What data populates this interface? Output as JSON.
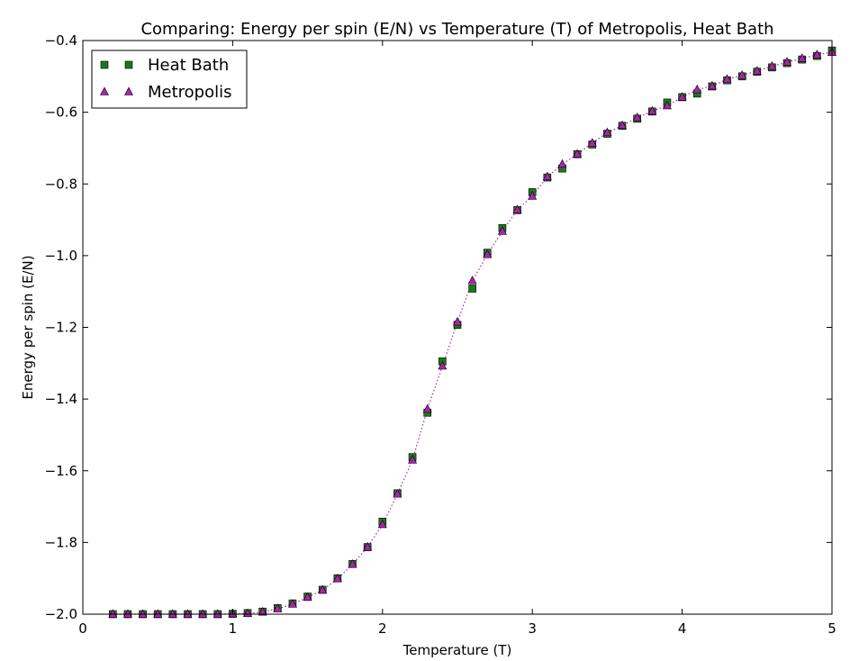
{
  "chart_data": {
    "type": "scatter",
    "title": "Comparing: Energy per spin (E/N) vs Temperature (T) of Metropolis, Heat Bath",
    "xlabel": "Temperature (T)",
    "ylabel": "Energy per spin (E/N)",
    "xlim": [
      0,
      5
    ],
    "ylim": [
      -2.0,
      -0.4
    ],
    "xticks": [
      0,
      1,
      2,
      3,
      4,
      5
    ],
    "xtick_labels": [
      "0",
      "1",
      "2",
      "3",
      "4",
      "5"
    ],
    "yticks": [
      -2.0,
      -1.8,
      -1.6,
      -1.4,
      -1.2,
      -1.0,
      -0.8,
      -0.6,
      -0.4
    ],
    "ytick_labels": [
      "−2.0",
      "−1.8",
      "−1.6",
      "−1.4",
      "−1.2",
      "−1.0",
      "−0.8",
      "−0.6",
      "−0.4"
    ],
    "grid": false,
    "legend_position": "top-left",
    "x": [
      0.2,
      0.3,
      0.4,
      0.5,
      0.6,
      0.7,
      0.8,
      0.9,
      1.0,
      1.1,
      1.2,
      1.3,
      1.4,
      1.5,
      1.6,
      1.7,
      1.8,
      1.9,
      2.0,
      2.1,
      2.2,
      2.3,
      2.4,
      2.5,
      2.6,
      2.7,
      2.8,
      2.9,
      3.0,
      3.1,
      3.2,
      3.3,
      3.4,
      3.5,
      3.6,
      3.7,
      3.8,
      3.9,
      4.0,
      4.1,
      4.2,
      4.3,
      4.4,
      4.5,
      4.6,
      4.7,
      4.8,
      4.9,
      5.0
    ],
    "series": [
      {
        "name": "Heat Bath",
        "marker": "square",
        "color": "#1a7a1a",
        "values": [
          -2.0,
          -2.0,
          -2.0,
          -2.0,
          -2.0,
          -2.0,
          -2.0,
          -2.0,
          -1.999,
          -1.997,
          -1.993,
          -1.983,
          -1.97,
          -1.951,
          -1.932,
          -1.9,
          -1.86,
          -1.813,
          -1.742,
          -1.663,
          -1.562,
          -1.438,
          -1.295,
          -1.193,
          -1.092,
          -0.992,
          -0.923,
          -0.873,
          -0.823,
          -0.782,
          -0.757,
          -0.717,
          -0.69,
          -0.66,
          -0.638,
          -0.618,
          -0.598,
          -0.573,
          -0.558,
          -0.548,
          -0.528,
          -0.511,
          -0.5,
          -0.487,
          -0.475,
          -0.463,
          -0.453,
          -0.443,
          -0.428
        ],
        "line_style": "none"
      },
      {
        "name": "Metropolis",
        "marker": "triangle",
        "color": "#b020b0",
        "values": [
          -2.0,
          -2.0,
          -2.0,
          -2.0,
          -2.0,
          -2.0,
          -2.0,
          -2.0,
          -1.999,
          -1.998,
          -1.994,
          -1.985,
          -1.972,
          -1.953,
          -1.933,
          -1.901,
          -1.861,
          -1.813,
          -1.75,
          -1.665,
          -1.57,
          -1.428,
          -1.308,
          -1.185,
          -1.07,
          -0.997,
          -0.932,
          -0.872,
          -0.834,
          -0.78,
          -0.745,
          -0.717,
          -0.686,
          -0.657,
          -0.637,
          -0.615,
          -0.597,
          -0.582,
          -0.558,
          -0.537,
          -0.527,
          -0.508,
          -0.497,
          -0.485,
          -0.472,
          -0.46,
          -0.45,
          -0.44,
          -0.433
        ],
        "line_style": "dotted"
      }
    ]
  }
}
